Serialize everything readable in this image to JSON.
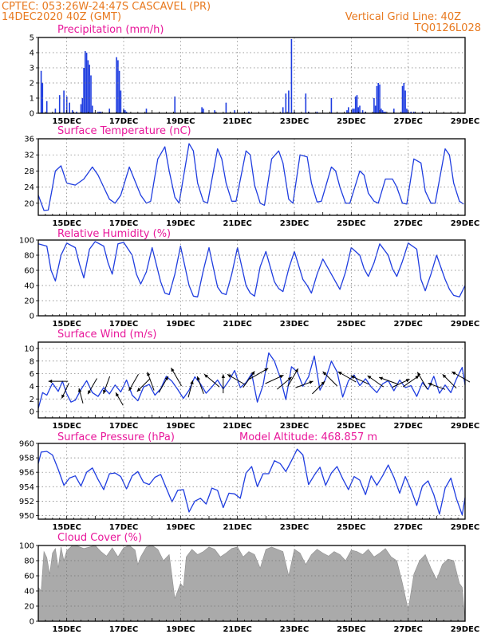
{
  "header": {
    "line1_left": "CPTEC:    053:26W-24:47S   CASCAVEL (PR)",
    "line2_left": "14DEC2020 40Z (GMT)",
    "line1_right": "Vertical Grid Line: 40Z",
    "line2_right": "TQ0126L028"
  },
  "extra": {
    "model_altitude": "Model Altitude: 468.857 m"
  },
  "colors": {
    "header": "#e8791f",
    "panel_title": "#e8179a",
    "series": "#1f3de0",
    "cloud": "#aaaaaa",
    "wind_arrow": "#000000"
  },
  "chart_data": [
    {
      "id": "precip",
      "type": "bar",
      "title": "Precipitation (mm/h)",
      "ylim": [
        0,
        5
      ],
      "yticks": [
        "0",
        "1",
        "2",
        "3",
        "4",
        "5"
      ],
      "xticks": [
        "15DEC",
        "17DEC",
        "19DEC",
        "21DEC",
        "23DEC",
        "25DEC",
        "27DEC",
        "29DEC"
      ],
      "grid": true,
      "x_day": [
        14.1,
        14.15,
        14.3,
        14.6,
        14.75,
        14.9,
        15.0,
        15.1,
        15.2,
        15.35,
        15.5,
        15.55,
        15.6,
        15.65,
        15.7,
        15.75,
        15.8,
        15.85,
        15.9,
        16.1,
        16.15,
        16.2,
        16.5,
        16.75,
        16.8,
        16.85,
        16.9,
        17.0,
        17.05,
        17.1,
        17.8,
        18.8,
        19.75,
        19.8,
        20.2,
        20.6,
        20.9,
        21.4,
        22.6,
        22.7,
        22.8,
        22.9,
        23.0,
        23.4,
        23.5,
        23.8,
        24.3,
        24.85,
        24.9,
        25.05,
        25.1,
        25.15,
        25.2,
        25.25,
        25.3,
        25.4,
        25.5,
        25.8,
        25.85,
        25.9,
        25.95,
        26.0,
        26.05,
        26.1,
        26.15,
        26.2,
        26.5,
        26.8,
        26.85,
        26.9,
        26.95,
        27.0,
        27.1,
        27.2,
        27.5
      ],
      "values": [
        2.8,
        2.0,
        0.8,
        0.3,
        1.2,
        1.5,
        1.1,
        0.7,
        0.2,
        0.1,
        0.6,
        1.0,
        3.0,
        4.1,
        4.0,
        3.5,
        3.2,
        2.5,
        0.5,
        0.1,
        0.1,
        0.1,
        0.3,
        3.7,
        3.5,
        2.8,
        1.5,
        0.3,
        0.2,
        0.1,
        0.3,
        1.1,
        0.4,
        0.3,
        0.2,
        0.7,
        0.2,
        0.1,
        0.4,
        1.3,
        1.5,
        4.9,
        0.1,
        1.3,
        0.1,
        0.1,
        1.0,
        0.2,
        0.4,
        0.3,
        0.3,
        1.1,
        1.2,
        0.4,
        0.5,
        0.2,
        0.1,
        1.0,
        0.5,
        1.8,
        2.0,
        1.9,
        0.3,
        0.2,
        0.1,
        0.1,
        0.3,
        1.8,
        2.0,
        1.5,
        0.3,
        0.1,
        0.1,
        0.1,
        0.1
      ]
    },
    {
      "id": "temperature",
      "type": "line",
      "title": "Surface Temperature (nC)",
      "ylim": [
        17,
        36
      ],
      "yticks": [
        "20",
        "24",
        "28",
        "32",
        "36"
      ],
      "xticks": [
        "15DEC",
        "17DEC",
        "19DEC",
        "21DEC",
        "23DEC",
        "25DEC",
        "27DEC",
        "29DEC"
      ],
      "grid": true,
      "x_day": [
        14.0,
        14.2,
        14.35,
        14.5,
        14.6,
        14.8,
        15.0,
        15.3,
        15.6,
        15.9,
        16.1,
        16.3,
        16.5,
        16.7,
        16.9,
        17.2,
        17.4,
        17.6,
        17.8,
        17.95,
        18.2,
        18.45,
        18.6,
        18.8,
        18.95,
        19.3,
        19.45,
        19.6,
        19.8,
        19.95,
        20.3,
        20.45,
        20.6,
        20.8,
        20.95,
        21.3,
        21.45,
        21.6,
        21.8,
        21.95,
        22.2,
        22.45,
        22.6,
        22.8,
        22.95,
        23.2,
        23.45,
        23.6,
        23.8,
        23.95,
        24.3,
        24.45,
        24.6,
        24.8,
        24.95,
        25.3,
        25.45,
        25.6,
        25.8,
        25.95,
        26.2,
        26.45,
        26.6,
        26.8,
        26.95,
        27.2,
        27.45,
        27.6,
        27.8,
        27.95,
        28.3,
        28.45,
        28.6,
        28.8,
        28.95
      ],
      "values": [
        22,
        18.2,
        18.3,
        24,
        28,
        29.3,
        25,
        24.5,
        26,
        29,
        27,
        24,
        21,
        20,
        22,
        29,
        25.5,
        22,
        20,
        20.5,
        31,
        34,
        28,
        21.5,
        20,
        34.8,
        33,
        25,
        20.5,
        20,
        33.5,
        31,
        25,
        20.5,
        20.5,
        33,
        32,
        24.5,
        20,
        19.5,
        31,
        33,
        30,
        21,
        20,
        32,
        31.5,
        25,
        20.3,
        20.5,
        29,
        28,
        24,
        20,
        20,
        28,
        27,
        22.5,
        20.5,
        20,
        26,
        26,
        24,
        20,
        19.8,
        31,
        30,
        23,
        20,
        20,
        33.5,
        32,
        25,
        20.5,
        19.8
      ]
    },
    {
      "id": "humidity",
      "type": "line",
      "title": "Relative Humidity (%)",
      "ylim": [
        0,
        100
      ],
      "yticks": [
        "0",
        "20",
        "40",
        "60",
        "80",
        "100"
      ],
      "xticks": [
        "15DEC",
        "17DEC",
        "19DEC",
        "21DEC",
        "23DEC",
        "25DEC",
        "27DEC",
        "29DEC"
      ],
      "grid": true,
      "x_day": [
        14.0,
        14.3,
        14.45,
        14.6,
        14.8,
        15.0,
        15.3,
        15.45,
        15.6,
        15.8,
        16.0,
        16.3,
        16.45,
        16.6,
        16.8,
        17.0,
        17.3,
        17.45,
        17.6,
        17.8,
        18.0,
        18.3,
        18.45,
        18.6,
        18.8,
        19.0,
        19.3,
        19.45,
        19.6,
        19.8,
        20.0,
        20.3,
        20.45,
        20.6,
        20.8,
        21.0,
        21.3,
        21.45,
        21.6,
        21.8,
        22.0,
        22.3,
        22.45,
        22.6,
        22.8,
        23.0,
        23.3,
        23.45,
        23.6,
        23.8,
        24.0,
        24.3,
        24.45,
        24.6,
        24.8,
        25.0,
        25.3,
        25.45,
        25.6,
        25.8,
        26.0,
        26.3,
        26.45,
        26.6,
        26.8,
        27.0,
        27.3,
        27.45,
        27.6,
        27.8,
        28.0,
        28.3,
        28.45,
        28.6,
        28.8,
        29.0
      ],
      "values": [
        95,
        92,
        60,
        46,
        80,
        96,
        90,
        68,
        50,
        88,
        98,
        92,
        70,
        55,
        95,
        97,
        80,
        55,
        42,
        58,
        90,
        45,
        30,
        28,
        55,
        92,
        40,
        26,
        25,
        60,
        90,
        38,
        30,
        28,
        55,
        90,
        40,
        30,
        26,
        65,
        85,
        45,
        36,
        32,
        62,
        85,
        48,
        40,
        30,
        55,
        75,
        55,
        45,
        35,
        58,
        90,
        80,
        62,
        52,
        70,
        95,
        80,
        62,
        52,
        72,
        96,
        88,
        48,
        33,
        55,
        80,
        48,
        35,
        27,
        25,
        40
      ]
    },
    {
      "id": "wind",
      "type": "line",
      "title": "Surface Wind (m/s)",
      "ylim": [
        -1,
        11
      ],
      "yticks": [
        "0",
        "2",
        "4",
        "6",
        "8",
        "10"
      ],
      "xticks": [
        "15DEC",
        "17DEC",
        "19DEC",
        "21DEC",
        "23DEC",
        "25DEC",
        "27DEC",
        "29DEC"
      ],
      "grid": true,
      "x_day": [
        14.0,
        14.15,
        14.3,
        14.5,
        14.7,
        14.85,
        15.0,
        15.15,
        15.3,
        15.5,
        15.7,
        15.9,
        16.1,
        16.3,
        16.5,
        16.7,
        16.9,
        17.1,
        17.3,
        17.5,
        17.7,
        17.9,
        18.1,
        18.3,
        18.5,
        18.7,
        18.9,
        19.1,
        19.3,
        19.5,
        19.7,
        19.9,
        20.1,
        20.3,
        20.5,
        20.7,
        20.9,
        21.1,
        21.3,
        21.5,
        21.7,
        21.9,
        22.1,
        22.3,
        22.5,
        22.7,
        22.9,
        23.1,
        23.3,
        23.5,
        23.7,
        23.9,
        24.1,
        24.3,
        24.5,
        24.7,
        24.9,
        25.1,
        25.3,
        25.5,
        25.7,
        25.9,
        26.1,
        26.3,
        26.5,
        26.7,
        26.9,
        27.1,
        27.3,
        27.5,
        27.7,
        27.9,
        28.1,
        28.3,
        28.5,
        28.7,
        28.9,
        29.0
      ],
      "values": [
        0.5,
        3.0,
        2.6,
        4.5,
        3.2,
        4.8,
        2.8,
        1.5,
        1.8,
        3.5,
        4.9,
        3.0,
        2.4,
        3.8,
        2.8,
        4.2,
        3.1,
        5.0,
        2.6,
        1.7,
        3.9,
        4.3,
        2.6,
        3.6,
        5.6,
        4.8,
        3.5,
        2.1,
        3.4,
        5.5,
        4.4,
        2.9,
        3.9,
        5.0,
        3.6,
        4.9,
        6.5,
        3.8,
        4.6,
        6.0,
        1.5,
        4.2,
        9.3,
        8.0,
        5.4,
        1.9,
        7.1,
        6.3,
        4.0,
        5.5,
        8.8,
        3.4,
        5.2,
        8.0,
        6.3,
        2.3,
        4.9,
        5.8,
        4.1,
        5.2,
        3.9,
        3.0,
        4.4,
        4.9,
        3.3,
        5.0,
        3.8,
        4.1,
        2.4,
        4.6,
        3.5,
        5.6,
        2.9,
        4.2,
        3.0,
        5.2,
        7.0,
        4.2
      ],
      "arrows": [
        {
          "day": 14.7,
          "speed": 4.8,
          "angle": 180
        },
        {
          "day": 14.95,
          "speed": 3.3,
          "angle": 245
        },
        {
          "day": 15.5,
          "speed": 2.5,
          "angle": 105
        },
        {
          "day": 15.9,
          "speed": 4.0,
          "angle": 240
        },
        {
          "day": 16.4,
          "speed": 4.2,
          "angle": 250
        },
        {
          "day": 16.85,
          "speed": 2.0,
          "angle": 120
        },
        {
          "day": 17.35,
          "speed": 4.6,
          "angle": 240
        },
        {
          "day": 17.7,
          "speed": 4.2,
          "angle": 225
        },
        {
          "day": 17.95,
          "speed": 4.8,
          "angle": 110
        },
        {
          "day": 18.4,
          "speed": 4.3,
          "angle": 60
        },
        {
          "day": 18.85,
          "speed": 5.5,
          "angle": 120
        },
        {
          "day": 19.35,
          "speed": 3.6,
          "angle": 75
        },
        {
          "day": 19.7,
          "speed": 4.2,
          "angle": 110
        },
        {
          "day": 20.1,
          "speed": 4.9,
          "angle": 140
        },
        {
          "day": 20.5,
          "speed": 4.4,
          "angle": 90
        },
        {
          "day": 20.95,
          "speed": 5.1,
          "angle": 150
        },
        {
          "day": 21.4,
          "speed": 5.1,
          "angle": 55
        },
        {
          "day": 21.75,
          "speed": 6.0,
          "angle": 30
        },
        {
          "day": 22.3,
          "speed": 5.1,
          "angle": 25
        },
        {
          "day": 22.65,
          "speed": 4.5,
          "angle": 40
        },
        {
          "day": 22.95,
          "speed": 5.4,
          "angle": 60
        },
        {
          "day": 23.35,
          "speed": 4.3,
          "angle": 20
        },
        {
          "day": 23.85,
          "speed": 3.8,
          "angle": 45
        },
        {
          "day": 24.25,
          "speed": 5.2,
          "angle": 135
        },
        {
          "day": 24.85,
          "speed": 5.5,
          "angle": 150
        },
        {
          "day": 25.3,
          "speed": 5.0,
          "angle": 155
        },
        {
          "day": 25.85,
          "speed": 4.8,
          "angle": 145
        },
        {
          "day": 26.3,
          "speed": 4.9,
          "angle": 160
        },
        {
          "day": 26.75,
          "speed": 4.5,
          "angle": 25
        },
        {
          "day": 27.1,
          "speed": 4.8,
          "angle": 35
        },
        {
          "day": 27.5,
          "speed": 4.9,
          "angle": 120
        },
        {
          "day": 28.0,
          "speed": 4.0,
          "angle": 160
        },
        {
          "day": 28.45,
          "speed": 4.8,
          "angle": 135
        },
        {
          "day": 28.85,
          "speed": 5.5,
          "angle": 150
        }
      ]
    },
    {
      "id": "pressure",
      "type": "line",
      "title": "Surface Pressure (hPa)",
      "ylim": [
        949.5,
        960
      ],
      "yticks": [
        "950",
        "952",
        "954",
        "956",
        "958",
        "960"
      ],
      "xticks": [
        "15DEC",
        "17DEC",
        "19DEC",
        "21DEC",
        "23DEC",
        "25DEC",
        "27DEC",
        "29DEC"
      ],
      "grid": true,
      "x_day": [
        14.0,
        14.1,
        14.3,
        14.5,
        14.7,
        14.9,
        15.1,
        15.3,
        15.5,
        15.7,
        15.9,
        16.1,
        16.3,
        16.5,
        16.7,
        16.9,
        17.1,
        17.3,
        17.5,
        17.7,
        17.9,
        18.1,
        18.3,
        18.5,
        18.7,
        18.9,
        19.1,
        19.3,
        19.5,
        19.7,
        19.9,
        20.1,
        20.3,
        20.5,
        20.7,
        20.9,
        21.1,
        21.3,
        21.5,
        21.7,
        21.9,
        22.1,
        22.3,
        22.5,
        22.7,
        22.9,
        23.1,
        23.3,
        23.5,
        23.7,
        23.9,
        24.1,
        24.3,
        24.5,
        24.7,
        24.9,
        25.1,
        25.3,
        25.5,
        25.7,
        25.9,
        26.1,
        26.3,
        26.5,
        26.7,
        26.9,
        27.1,
        27.3,
        27.5,
        27.7,
        27.9,
        28.1,
        28.3,
        28.5,
        28.7,
        28.9,
        29.0
      ],
      "values": [
        957.2,
        958.8,
        958.9,
        958.4,
        956.4,
        954.2,
        955.2,
        955.5,
        954.1,
        956.0,
        956.6,
        955.0,
        953.6,
        955.8,
        955.9,
        955.4,
        953.7,
        955.5,
        956.1,
        954.6,
        954.3,
        955.3,
        955.7,
        953.8,
        951.9,
        953.5,
        953.6,
        950.5,
        952.0,
        952.4,
        951.6,
        953.8,
        953.5,
        951.1,
        953.1,
        953.0,
        952.4,
        955.9,
        956.8,
        954.0,
        955.8,
        955.8,
        957.6,
        957.2,
        956.1,
        957.6,
        959.2,
        958.4,
        954.3,
        955.6,
        956.7,
        954.2,
        955.9,
        956.8,
        955.1,
        953.6,
        955.4,
        954.9,
        952.9,
        955.5,
        954.2,
        955.5,
        957.0,
        955.3,
        953.1,
        955.4,
        953.6,
        951.4,
        954.1,
        954.8,
        952.9,
        950.2,
        953.8,
        955.2,
        952.3,
        950.1,
        952.5
      ]
    },
    {
      "id": "cloud",
      "type": "area",
      "title": "Cloud Cover (%)",
      "ylim": [
        0,
        100
      ],
      "yticks": [
        "0",
        "20",
        "40",
        "60",
        "80",
        "100"
      ],
      "xticks": [
        "15DEC",
        "17DEC",
        "19DEC",
        "21DEC",
        "23DEC",
        "25DEC",
        "27DEC",
        "29DEC"
      ],
      "grid": true,
      "x_day": [
        14.0,
        14.1,
        14.2,
        14.3,
        14.4,
        14.5,
        14.6,
        14.7,
        14.8,
        14.9,
        15.0,
        15.2,
        15.4,
        15.6,
        15.8,
        16.0,
        16.2,
        16.4,
        16.6,
        16.8,
        17.0,
        17.2,
        17.4,
        17.5,
        17.6,
        17.8,
        18.0,
        18.2,
        18.4,
        18.6,
        18.8,
        19.0,
        19.1,
        19.2,
        19.4,
        19.6,
        19.8,
        20.0,
        20.2,
        20.4,
        20.6,
        20.8,
        21.0,
        21.2,
        21.4,
        21.6,
        21.8,
        22.0,
        22.2,
        22.4,
        22.6,
        22.8,
        23.0,
        23.2,
        23.4,
        23.6,
        23.8,
        24.0,
        24.2,
        24.4,
        24.6,
        24.8,
        25.0,
        25.2,
        25.4,
        25.6,
        25.8,
        26.0,
        26.2,
        26.4,
        26.6,
        26.8,
        27.0,
        27.2,
        27.4,
        27.6,
        27.8,
        28.0,
        28.2,
        28.4,
        28.6,
        28.8,
        28.9,
        29.0
      ],
      "values": [
        45,
        40,
        92,
        84,
        62,
        90,
        96,
        70,
        98,
        80,
        93,
        100,
        99,
        96,
        98,
        100,
        92,
        86,
        97,
        85,
        97,
        100,
        94,
        75,
        85,
        98,
        100,
        95,
        80,
        88,
        30,
        50,
        45,
        85,
        95,
        88,
        92,
        98,
        95,
        85,
        90,
        96,
        98,
        85,
        92,
        88,
        70,
        95,
        98,
        95,
        92,
        60,
        95,
        90,
        75,
        88,
        95,
        90,
        86,
        92,
        88,
        80,
        94,
        92,
        88,
        95,
        85,
        90,
        96,
        85,
        80,
        50,
        15,
        62,
        80,
        88,
        70,
        55,
        75,
        82,
        80,
        50,
        45,
        3
      ]
    }
  ]
}
